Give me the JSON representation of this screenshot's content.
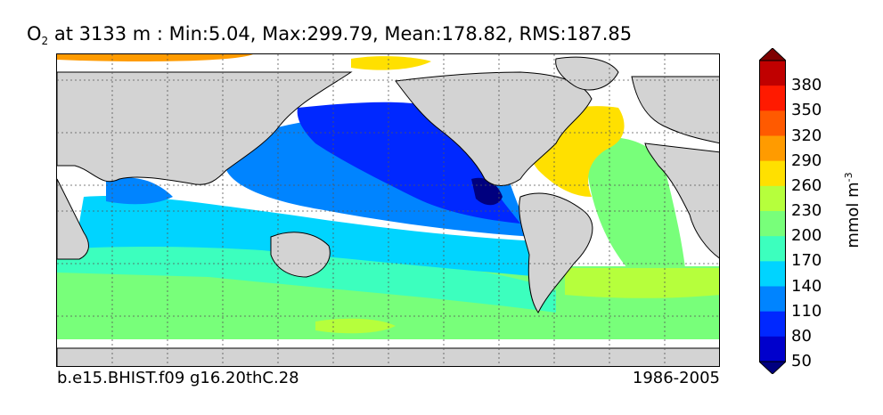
{
  "title": {
    "species": "O",
    "species_sub": "2",
    "text": " at 3133 m : Min:5.04, Max:299.79, Mean:178.82, RMS:187.85"
  },
  "footer": {
    "case": "b.e15.BHIST.f09 g16.20thC.28",
    "period": "1986-2005"
  },
  "colorbar": {
    "units": "mmol m",
    "units_sup": "-3",
    "ticks": [
      "380",
      "350",
      "320",
      "290",
      "260",
      "230",
      "200",
      "170",
      "140",
      "110",
      "80",
      "50"
    ],
    "colors": [
      "#7f0000",
      "#c00000",
      "#ff1a00",
      "#ff5a00",
      "#ff9b00",
      "#ffe000",
      "#b6ff3c",
      "#78ff7a",
      "#3cffbe",
      "#00d4ff",
      "#0084ff",
      "#0028ff",
      "#0000cc",
      "#00007f"
    ]
  },
  "map": {
    "land_color": "#d3d3d3",
    "nodata_color": "#ffffff"
  }
}
